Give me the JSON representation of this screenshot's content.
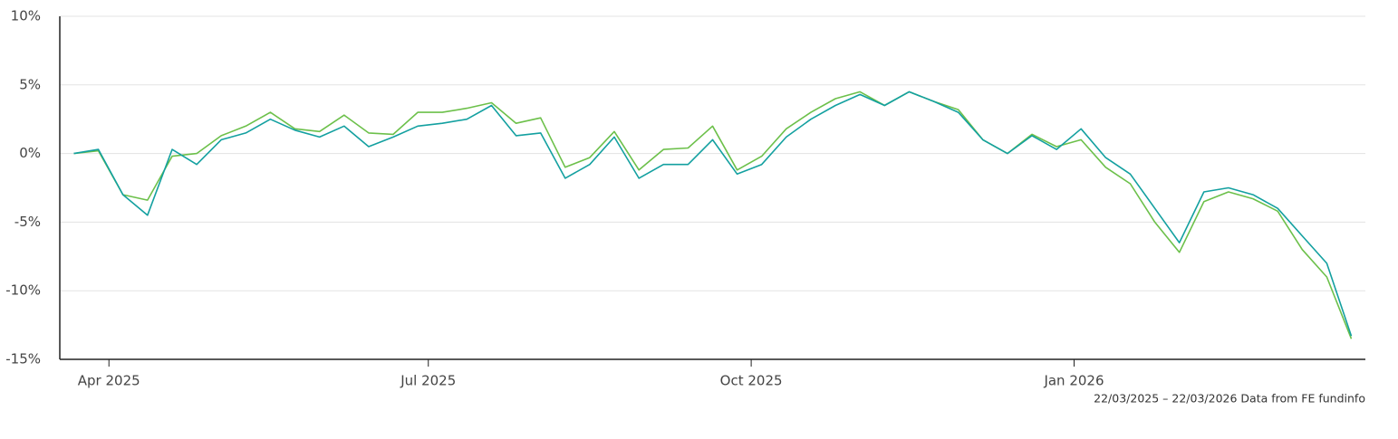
{
  "chart_data": {
    "type": "line",
    "x": [
      "2025-03-22",
      "2025-03-29",
      "2025-04-05",
      "2025-04-12",
      "2025-04-19",
      "2025-04-26",
      "2025-05-03",
      "2025-05-10",
      "2025-05-17",
      "2025-05-24",
      "2025-05-31",
      "2025-06-07",
      "2025-06-14",
      "2025-06-21",
      "2025-06-28",
      "2025-07-05",
      "2025-07-12",
      "2025-07-19",
      "2025-07-26",
      "2025-08-02",
      "2025-08-09",
      "2025-08-16",
      "2025-08-23",
      "2025-08-30",
      "2025-09-06",
      "2025-09-13",
      "2025-09-20",
      "2025-09-27",
      "2025-10-04",
      "2025-10-11",
      "2025-10-18",
      "2025-10-25",
      "2025-11-01",
      "2025-11-08",
      "2025-11-15",
      "2025-11-22",
      "2025-11-29",
      "2025-12-06",
      "2025-12-13",
      "2025-12-20",
      "2025-12-27",
      "2026-01-03",
      "2026-01-10",
      "2026-01-17",
      "2026-01-24",
      "2026-01-31",
      "2026-02-07",
      "2026-02-14",
      "2026-02-21",
      "2026-02-28",
      "2026-03-07",
      "2026-03-14",
      "2026-03-21"
    ],
    "series": [
      {
        "color": "#6cc04a",
        "values": [
          0,
          0.2,
          -3.0,
          -3.4,
          -0.2,
          0.0,
          1.3,
          2.0,
          3.0,
          1.8,
          1.6,
          2.8,
          1.5,
          1.4,
          3.0,
          3.0,
          3.3,
          3.7,
          2.2,
          2.6,
          -1.0,
          -0.3,
          1.6,
          -1.2,
          0.3,
          0.4,
          2.0,
          -1.2,
          -0.2,
          1.8,
          3.0,
          4.0,
          4.5,
          3.5,
          4.5,
          3.8,
          3.2,
          1.0,
          0.0,
          1.4,
          0.5,
          1.0,
          -1.0,
          -2.2,
          -5.0,
          -7.2,
          -3.5,
          -2.8,
          -3.3,
          -4.2,
          -7.0,
          -9.0,
          -13.5
        ]
      },
      {
        "color": "#13a0a0",
        "values": [
          0,
          0.3,
          -3.0,
          -4.5,
          0.3,
          -0.8,
          1.0,
          1.5,
          2.5,
          1.7,
          1.2,
          2.0,
          0.5,
          1.2,
          2.0,
          2.2,
          2.5,
          3.5,
          1.3,
          1.5,
          -1.8,
          -0.8,
          1.2,
          -1.8,
          -0.8,
          -0.8,
          1.0,
          -1.5,
          -0.8,
          1.2,
          2.5,
          3.5,
          4.3,
          3.5,
          4.5,
          3.8,
          3.0,
          1.0,
          0.0,
          1.3,
          0.3,
          1.8,
          -0.3,
          -1.5,
          -4.0,
          -6.5,
          -2.8,
          -2.5,
          -3.0,
          -4.0,
          -6.0,
          -8.0,
          -13.3
        ]
      }
    ],
    "xlim": [
      "2025-03-18",
      "2026-03-25"
    ],
    "xticks": [
      {
        "value": "2025-04-01",
        "label": "Apr 2025"
      },
      {
        "value": "2025-07-01",
        "label": "Jul 2025"
      },
      {
        "value": "2025-10-01",
        "label": "Oct 2025"
      },
      {
        "value": "2026-01-01",
        "label": "Jan 2026"
      }
    ],
    "ylim": [
      -15,
      10
    ],
    "yticks": [
      {
        "value": -15,
        "label": "-15%"
      },
      {
        "value": -10,
        "label": "-10%"
      },
      {
        "value": -5,
        "label": "-5%"
      },
      {
        "value": 0,
        "label": "0%"
      },
      {
        "value": 5,
        "label": "5%"
      },
      {
        "value": 10,
        "label": "10%"
      }
    ],
    "grid": true,
    "footnote": "22/03/2025 – 22/03/2026 Data from FE fundinfo"
  }
}
